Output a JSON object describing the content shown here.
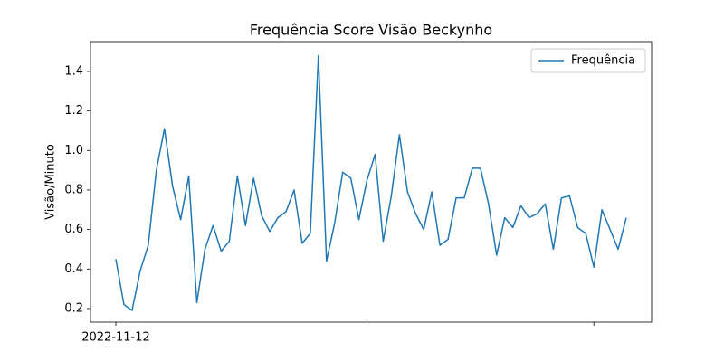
{
  "chart_data": {
    "type": "line",
    "title": "Frequência Score Visão Beckynho",
    "ylabel": "Visão/Minuto",
    "categories": [
      "2022-11-12",
      null,
      null,
      null,
      null,
      null,
      null,
      null,
      null,
      null,
      null,
      null,
      null,
      null,
      null,
      null,
      null,
      null,
      null,
      null,
      null,
      null,
      null,
      null,
      null,
      null,
      null,
      null,
      null,
      null,
      null,
      null,
      null,
      null,
      null,
      null,
      null,
      null,
      null,
      null,
      null,
      null,
      null,
      null,
      null,
      null,
      null,
      null,
      null,
      null,
      null,
      null,
      null,
      null,
      null,
      null,
      null,
      null,
      null,
      null,
      null,
      null,
      null,
      null
    ],
    "xticks": [
      0,
      31,
      59
    ],
    "series": [
      {
        "name": "Frequência",
        "color": "#1f77b4",
        "values": [
          0.45,
          0.22,
          0.19,
          0.39,
          0.52,
          0.9,
          1.11,
          0.82,
          0.65,
          0.87,
          0.23,
          0.5,
          0.62,
          0.49,
          0.54,
          0.87,
          0.62,
          0.86,
          0.67,
          0.59,
          0.66,
          0.69,
          0.8,
          0.53,
          0.58,
          1.48,
          0.44,
          0.63,
          0.89,
          0.86,
          0.65,
          0.85,
          0.98,
          0.54,
          0.77,
          1.08,
          0.79,
          0.68,
          0.6,
          0.79,
          0.52,
          0.55,
          0.76,
          0.76,
          0.91,
          0.91,
          0.73,
          0.47,
          0.66,
          0.61,
          0.72,
          0.66,
          0.68,
          0.73,
          0.5,
          0.76,
          0.77,
          0.61,
          0.58,
          0.41,
          0.7,
          0.6,
          0.5,
          0.66
        ]
      }
    ],
    "ylim": [
      0.131,
      1.551
    ],
    "yticks": [
      0.2,
      0.4,
      0.6,
      0.8,
      {
        "value": 1,
        "label": "1.0"
      },
      1.2,
      1.4
    ],
    "grid": false,
    "legend": "upper right"
  }
}
